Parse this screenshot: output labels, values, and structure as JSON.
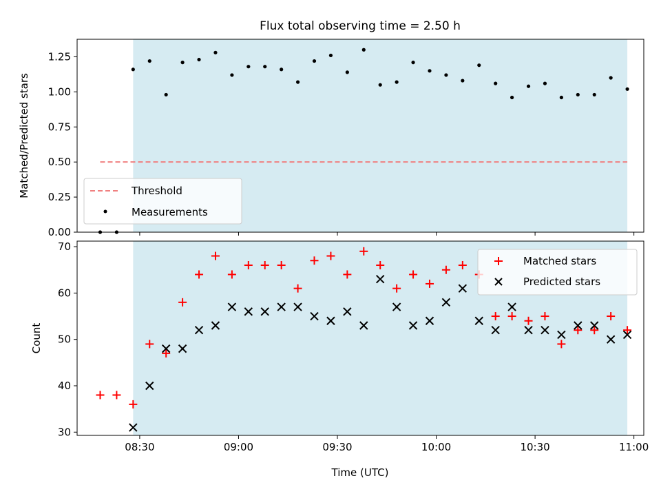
{
  "chart_data": [
    {
      "type": "scatter",
      "title": "Flux total observing time = 2.50 h",
      "xlabel": "",
      "ylabel": "Matched/Predicted stars",
      "ylim": [
        0,
        1.375
      ],
      "yticks": [
        0.0,
        0.25,
        0.5,
        0.75,
        1.0,
        1.25
      ],
      "ytick_labels": [
        "0.00",
        "0.25",
        "0.50",
        "0.75",
        "1.00",
        "1.25"
      ],
      "observing_span": [
        "08:28",
        "10:58"
      ],
      "threshold": {
        "name": "Threshold",
        "value": 0.5,
        "x_range": [
          "08:18",
          "10:58"
        ],
        "color": "#f08080"
      },
      "series": [
        {
          "name": "Measurements",
          "color": "#000000",
          "x": [
            "08:18",
            "08:23",
            "08:28",
            "08:33",
            "08:38",
            "08:43",
            "08:48",
            "08:53",
            "08:58",
            "09:03",
            "09:08",
            "09:13",
            "09:18",
            "09:23",
            "09:28",
            "09:33",
            "09:38",
            "09:43",
            "09:48",
            "09:53",
            "09:58",
            "10:03",
            "10:08",
            "10:13",
            "10:18",
            "10:23",
            "10:28",
            "10:33",
            "10:38",
            "10:43",
            "10:48",
            "10:53",
            "10:58"
          ],
          "values": [
            0.0,
            0.0,
            1.16,
            1.22,
            0.98,
            1.21,
            1.23,
            1.28,
            1.12,
            1.18,
            1.18,
            1.16,
            1.07,
            1.22,
            1.26,
            1.14,
            1.3,
            1.05,
            1.07,
            1.21,
            1.15,
            1.12,
            1.08,
            1.19,
            1.06,
            0.96,
            1.04,
            1.06,
            0.96,
            0.98,
            0.98,
            1.1,
            1.02
          ]
        }
      ],
      "legend": [
        "Threshold",
        "Measurements"
      ],
      "legend_position": "lower-left"
    },
    {
      "type": "scatter",
      "title": "",
      "xlabel": "Time (UTC)",
      "ylabel": "Count",
      "ylim": [
        29.3,
        71.2
      ],
      "yticks": [
        30,
        40,
        50,
        60,
        70
      ],
      "ytick_labels": [
        "30",
        "40",
        "50",
        "60",
        "70"
      ],
      "x_range": [
        "08:11",
        "11:03"
      ],
      "xticks": [
        "08:30",
        "09:00",
        "09:30",
        "10:00",
        "10:30",
        "11:00"
      ],
      "observing_span": [
        "08:28",
        "10:58"
      ],
      "x": [
        "08:18",
        "08:23",
        "08:28",
        "08:33",
        "08:38",
        "08:43",
        "08:48",
        "08:53",
        "08:58",
        "09:03",
        "09:08",
        "09:13",
        "09:18",
        "09:23",
        "09:28",
        "09:33",
        "09:38",
        "09:43",
        "09:48",
        "09:53",
        "09:58",
        "10:03",
        "10:08",
        "10:13",
        "10:18",
        "10:23",
        "10:28",
        "10:33",
        "10:38",
        "10:43",
        "10:48",
        "10:53",
        "10:58"
      ],
      "series": [
        {
          "name": "Matched stars",
          "color": "#ff0000",
          "marker": "plus",
          "values": [
            38,
            38,
            36,
            49,
            47,
            58,
            64,
            68,
            64,
            66,
            66,
            66,
            61,
            67,
            68,
            64,
            69,
            66,
            61,
            64,
            62,
            65,
            66,
            64,
            55,
            55,
            54,
            55,
            49,
            52,
            52,
            55,
            52
          ]
        },
        {
          "name": "Predicted stars",
          "color": "#000000",
          "marker": "x",
          "values": [
            null,
            null,
            31,
            40,
            48,
            48,
            52,
            53,
            57,
            56,
            56,
            57,
            57,
            55,
            54,
            56,
            53,
            63,
            57,
            53,
            54,
            58,
            61,
            54,
            52,
            57,
            52,
            52,
            51,
            53,
            53,
            50,
            51
          ]
        }
      ],
      "legend": [
        "Matched stars",
        "Predicted stars"
      ],
      "legend_position": "top-right"
    }
  ],
  "colors": {
    "shade": "#add8e6"
  }
}
